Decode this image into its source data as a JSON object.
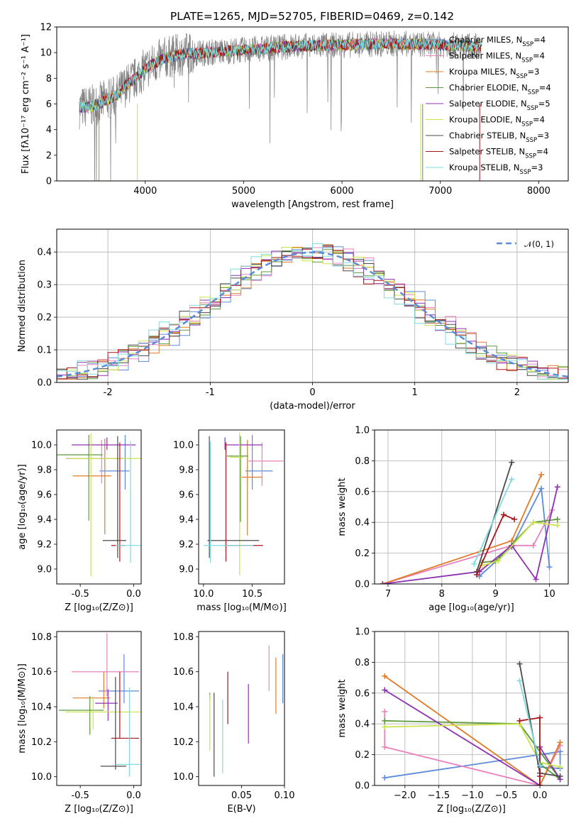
{
  "figure_title": "PLATE=1265, MJD=52705, FIBERID=0469, z=0.142",
  "series": [
    {
      "name": "Chabrier MILES",
      "nssp": "4",
      "color": "#5b8bd9"
    },
    {
      "name": "Salpeter MILES",
      "nssp": "4",
      "color": "#e882bd"
    },
    {
      "name": "Kroupa MILES",
      "nssp": "3",
      "color": "#e07b26"
    },
    {
      "name": "Chabrier ELODIE",
      "nssp": "4",
      "color": "#5b9a3c"
    },
    {
      "name": "Salpeter ELODIE",
      "nssp": "5",
      "color": "#8e31b2"
    },
    {
      "name": "Kroupa ELODIE",
      "nssp": "4",
      "color": "#cbe34b"
    },
    {
      "name": "Chabrier STELIB",
      "nssp": "3",
      "color": "#4a4a4a"
    },
    {
      "name": "Salpeter STELIB",
      "nssp": "4",
      "color": "#a8141a"
    },
    {
      "name": "Kroupa STELIB",
      "nssp": "3",
      "color": "#7fdbe0"
    }
  ],
  "chart_data": [
    {
      "id": "spectrum",
      "type": "line",
      "xlabel": "wavelength [Angstrom, rest frame]",
      "ylabel": "Flux [fλ10⁻¹⁷ erg cm⁻² s⁻¹ A⁻¹]",
      "xlim": [
        3100,
        8300
      ],
      "ylim": [
        0,
        12
      ],
      "xticks": [
        4000,
        5000,
        6000,
        7000,
        8000
      ],
      "yticks": [
        0,
        2,
        4,
        6,
        8,
        10,
        12
      ],
      "continuum": {
        "x": [
          3330,
          3500,
          3600,
          3700,
          3800,
          3900,
          3950,
          4050,
          4200,
          4400,
          4600,
          5000,
          5500,
          6000,
          6500,
          7000,
          7300,
          7400
        ],
        "y": [
          5.7,
          5.9,
          6.3,
          6.6,
          7.4,
          8.0,
          8.4,
          9.0,
          9.6,
          9.9,
          10.0,
          10.2,
          10.5,
          10.6,
          10.7,
          10.6,
          10.5,
          10.5
        ]
      }
    },
    {
      "id": "residuals",
      "type": "histogram",
      "xlabel": "(data-model)/error",
      "ylabel": "Normed distribution",
      "xlim": [
        -2.5,
        2.5
      ],
      "ylim": [
        0,
        0.47
      ],
      "xticks": [
        -2,
        -1,
        0,
        1,
        2
      ],
      "yticks": [
        0.0,
        0.1,
        0.2,
        0.3,
        0.4
      ],
      "reference_label": "𝒩(0, 1)",
      "reference_color": "#5b8bd9"
    },
    {
      "id": "age_vs_Z",
      "type": "errorbar",
      "xlabel": "Z [log₁₀(Z/Z⊙)]",
      "ylabel": "age  [log₁₀(age/yr)]",
      "xlim": [
        -0.72,
        0.07
      ],
      "ylim": [
        8.88,
        10.12
      ],
      "xticks": [
        -0.5,
        0.0
      ],
      "yticks": [
        9.0,
        9.2,
        9.4,
        9.6,
        9.8,
        10.0
      ],
      "points": [
        {
          "s": 0,
          "x": -0.08,
          "xerr": [
            0.24,
            0.04
          ],
          "y": 9.79,
          "yerr": [
            0.15,
            0.29
          ]
        },
        {
          "s": 1,
          "x": -0.3,
          "xerr": [
            0.33,
            0.21
          ],
          "y": 9.89,
          "yerr": [
            0.2,
            0.15
          ]
        },
        {
          "s": 2,
          "x": -0.27,
          "xerr": [
            0.3,
            0.06
          ],
          "y": 9.75,
          "yerr": [
            0.47,
            0.3
          ]
        },
        {
          "s": 3,
          "x": -0.42,
          "xerr": [
            0.3,
            0.13
          ],
          "y": 9.92,
          "yerr": [
            0.53,
            0.16
          ]
        },
        {
          "s": 4,
          "x": -0.25,
          "xerr": [
            0.33,
            0.27
          ],
          "y": 10.0,
          "yerr": [
            0.04,
            0.06
          ]
        },
        {
          "s": 5,
          "x": -0.4,
          "xerr": [
            0.21,
            0.48
          ],
          "y": 9.89,
          "yerr": [
            0.95,
            0.2
          ]
        },
        {
          "s": 6,
          "x": -0.15,
          "xerr": [
            0.14,
            0.08
          ],
          "y": 9.23,
          "yerr": [
            0.14,
            0.84
          ]
        },
        {
          "s": 7,
          "x": -0.13,
          "xerr": [
            0.08,
            0.05
          ],
          "y": 9.19,
          "yerr": [
            0.13,
            0.83
          ]
        },
        {
          "s": 8,
          "x": -0.03,
          "xerr": [
            0.14,
            0.1
          ],
          "y": 9.19,
          "yerr": [
            0.14,
            0.84
          ]
        }
      ]
    },
    {
      "id": "age_vs_mass",
      "type": "errorbar",
      "xlabel": "mass [log₁₀(M/M⊙)]",
      "ylabel": "",
      "xlim": [
        9.95,
        10.83
      ],
      "ylim": [
        8.88,
        10.12
      ],
      "xticks": [
        10.0,
        10.5
      ],
      "yticks": [
        9.0,
        9.2,
        9.4,
        9.6,
        9.8,
        10.0
      ],
      "points": [
        {
          "s": 0,
          "x": 10.5,
          "xerr": [
            0.07,
            0.21
          ],
          "y": 9.79,
          "yerr": [
            0.15,
            0.29
          ]
        },
        {
          "s": 1,
          "x": 10.6,
          "xerr": [
            0.14,
            0.22
          ],
          "y": 9.87,
          "yerr": [
            0.2,
            0.15
          ]
        },
        {
          "s": 2,
          "x": 10.45,
          "xerr": [
            0.06,
            0.15
          ],
          "y": 9.74,
          "yerr": [
            0.47,
            0.3
          ]
        },
        {
          "s": 3,
          "x": 10.38,
          "xerr": [
            0.14,
            0.08
          ],
          "y": 9.91,
          "yerr": [
            0.53,
            0.16
          ]
        },
        {
          "s": 4,
          "x": 10.22,
          "xerr": [
            0.0,
            0.38
          ],
          "y": 10.0,
          "yerr": [
            0.04,
            0.06
          ]
        },
        {
          "s": 5,
          "x": 10.37,
          "xerr": [
            0.1,
            0.04
          ],
          "y": 9.9,
          "yerr": [
            0.95,
            0.2
          ]
        },
        {
          "s": 6,
          "x": 10.06,
          "xerr": [
            0.02,
            0.51
          ],
          "y": 9.23,
          "yerr": [
            0.14,
            0.84
          ]
        },
        {
          "s": 7,
          "x": 10.23,
          "xerr": [
            0.02,
            0.38
          ],
          "y": 9.19,
          "yerr": [
            0.13,
            0.83
          ]
        },
        {
          "s": 8,
          "x": 10.07,
          "xerr": [
            0.07,
            0.44
          ],
          "y": 9.19,
          "yerr": [
            0.14,
            0.84
          ]
        }
      ]
    },
    {
      "id": "weight_vs_age",
      "type": "line",
      "xlabel": "age  [log₁₀(age/yr)]",
      "ylabel": "mass weight",
      "xlim": [
        6.75,
        10.35
      ],
      "ylim": [
        0,
        1
      ],
      "xticks": [
        7,
        8,
        9,
        10
      ],
      "yticks": [
        0.0,
        0.2,
        0.4,
        0.6,
        0.8,
        1.0
      ],
      "lines": [
        {
          "s": 0,
          "x": [
            8.7,
            9.3,
            9.85,
            10.0
          ],
          "y": [
            0.05,
            0.24,
            0.62,
            0.11
          ]
        },
        {
          "s": 1,
          "x": [
            6.9,
            9.3,
            9.7,
            10.05
          ],
          "y": [
            0.0,
            0.25,
            0.25,
            0.48
          ]
        },
        {
          "s": 2,
          "x": [
            6.9,
            9.3,
            9.85
          ],
          "y": [
            0.0,
            0.28,
            0.71
          ]
        },
        {
          "s": 3,
          "x": [
            8.75,
            9.0,
            9.7,
            10.15
          ],
          "y": [
            0.14,
            0.15,
            0.4,
            0.42
          ]
        },
        {
          "s": 4,
          "x": [
            6.9,
            8.7,
            9.3,
            9.75,
            10.15
          ],
          "y": [
            0.0,
            0.08,
            0.25,
            0.03,
            0.63
          ]
        },
        {
          "s": 5,
          "x": [
            8.75,
            9.05,
            9.7,
            10.15
          ],
          "y": [
            0.12,
            0.15,
            0.4,
            0.38
          ]
        },
        {
          "s": 6,
          "x": [
            8.65,
            9.3
          ],
          "y": [
            0.08,
            0.79
          ]
        },
        {
          "s": 7,
          "x": [
            8.65,
            9.15,
            9.35
          ],
          "y": [
            0.06,
            0.45,
            0.42
          ]
        },
        {
          "s": 8,
          "x": [
            8.6,
            9.3
          ],
          "y": [
            0.13,
            0.68
          ]
        }
      ]
    },
    {
      "id": "mass_vs_Z",
      "type": "errorbar",
      "xlabel": "Z [log₁₀(Z/Z⊙)]",
      "ylabel": "mass [log₁₀(M/M⊙)]",
      "xlim": [
        -0.72,
        0.07
      ],
      "ylim": [
        9.95,
        10.83
      ],
      "xticks": [
        -0.5,
        0.0
      ],
      "yticks": [
        10.0,
        10.2,
        10.4,
        10.6,
        10.8
      ],
      "points": [
        {
          "s": 0,
          "x": -0.09,
          "xerr": [
            0.24,
            0.14
          ],
          "y": 10.49,
          "yerr": [
            0.07,
            0.21
          ]
        },
        {
          "s": 1,
          "x": -0.25,
          "xerr": [
            0.33,
            0.3
          ],
          "y": 10.6,
          "yerr": [
            0.14,
            0.22
          ]
        },
        {
          "s": 2,
          "x": -0.28,
          "xerr": [
            0.29,
            0.06
          ],
          "y": 10.45,
          "yerr": [
            0.06,
            0.15
          ]
        },
        {
          "s": 3,
          "x": -0.41,
          "xerr": [
            0.29,
            0.13
          ],
          "y": 10.38,
          "yerr": [
            0.14,
            0.08
          ]
        },
        {
          "s": 4,
          "x": -0.24,
          "xerr": [
            0.12,
            0.09
          ],
          "y": 10.42,
          "yerr": [
            0.1,
            0.08
          ]
        },
        {
          "s": 5,
          "x": -0.38,
          "xerr": [
            0.26,
            0.46
          ],
          "y": 10.37,
          "yerr": [
            0.1,
            0.09
          ]
        },
        {
          "s": 6,
          "x": -0.17,
          "xerr": [
            0.14,
            0.1
          ],
          "y": 10.06,
          "yerr": [
            0.02,
            0.51
          ]
        },
        {
          "s": 7,
          "x": -0.13,
          "xerr": [
            0.08,
            0.18
          ],
          "y": 10.22,
          "yerr": [
            0.0,
            0.38
          ]
        },
        {
          "s": 8,
          "x": -0.04,
          "xerr": [
            0.13,
            0.1
          ],
          "y": 10.07,
          "yerr": [
            0.07,
            0.44
          ]
        }
      ]
    },
    {
      "id": "mass_vs_EBV",
      "type": "errorbar",
      "xlabel": "E(B-V)",
      "ylabel": "",
      "xlim": [
        0.0,
        0.1
      ],
      "ylim": [
        9.95,
        10.83
      ],
      "xticks": [
        0.05,
        0.1
      ],
      "yticks": [
        10.0,
        10.2,
        10.4,
        10.6,
        10.8
      ],
      "points": [
        {
          "s": 0,
          "x": 0.098,
          "y": 10.56,
          "yerr": [
            0.14,
            0.14
          ]
        },
        {
          "s": 1,
          "x": 0.082,
          "y": 10.61,
          "yerr": [
            0.12,
            0.14
          ]
        },
        {
          "s": 2,
          "x": 0.09,
          "y": 10.52,
          "yerr": [
            0.16,
            0.16
          ]
        },
        {
          "s": 3,
          "x": 0.013,
          "y": 10.46,
          "yerr": [
            0.02,
            0.02
          ]
        },
        {
          "s": 4,
          "x": 0.058,
          "y": 10.36,
          "yerr": [
            0.17,
            0.17
          ]
        },
        {
          "s": 5,
          "x": 0.013,
          "y": 10.31,
          "yerr": [
            0.16,
            0.16
          ]
        },
        {
          "s": 6,
          "x": 0.018,
          "y": 10.24,
          "yerr": [
            0.24,
            0.24
          ]
        },
        {
          "s": 7,
          "x": 0.034,
          "y": 10.45,
          "yerr": [
            0.15,
            0.15
          ]
        },
        {
          "s": 8,
          "x": 0.028,
          "y": 10.28,
          "yerr": [
            0.26,
            0.16
          ]
        }
      ]
    },
    {
      "id": "weight_vs_Z",
      "type": "line",
      "xlabel": "Z [log₁₀(Z/Z⊙)]",
      "ylabel": "mass weight",
      "xlim": [
        -2.45,
        0.42
      ],
      "ylim": [
        0,
        1
      ],
      "xticks": [
        -2.0,
        -1.5,
        -1.0,
        -0.5,
        0.0
      ],
      "yticks": [
        0.0,
        0.2,
        0.4,
        0.6,
        0.8,
        1.0
      ],
      "lines": [
        {
          "s": 0,
          "x": [
            -2.3,
            0.3,
            0.3,
            0.0
          ],
          "y": [
            0.05,
            0.22,
            0.11,
            0.12
          ]
        },
        {
          "s": 1,
          "x": [
            -2.3,
            -2.3,
            0.0,
            0.3
          ],
          "y": [
            0.48,
            0.25,
            0.0,
            0.26
          ]
        },
        {
          "s": 2,
          "x": [
            -2.3,
            0.0,
            0.3
          ],
          "y": [
            0.71,
            0.0,
            0.28
          ]
        },
        {
          "s": 3,
          "x": [
            -2.3,
            -0.3,
            0.3,
            0.0
          ],
          "y": [
            0.42,
            0.4,
            0.04,
            0.14
          ]
        },
        {
          "s": 4,
          "x": [
            -2.3,
            0.0,
            0.0,
            0.3
          ],
          "y": [
            0.62,
            0.0,
            0.25,
            0.04
          ]
        },
        {
          "s": 5,
          "x": [
            -2.3,
            -0.3,
            0.0,
            0.3
          ],
          "y": [
            0.38,
            0.4,
            0.15,
            0.12
          ]
        },
        {
          "s": 6,
          "x": [
            -0.3,
            0.0,
            0.3
          ],
          "y": [
            0.79,
            0.08,
            0.06
          ]
        },
        {
          "s": 7,
          "x": [
            -0.3,
            0.0,
            0.0,
            0.0
          ],
          "y": [
            0.42,
            0.44,
            0.06,
            0.0
          ]
        },
        {
          "s": 8,
          "x": [
            -0.3,
            0.0
          ],
          "y": [
            0.68,
            0.13
          ]
        }
      ]
    }
  ]
}
